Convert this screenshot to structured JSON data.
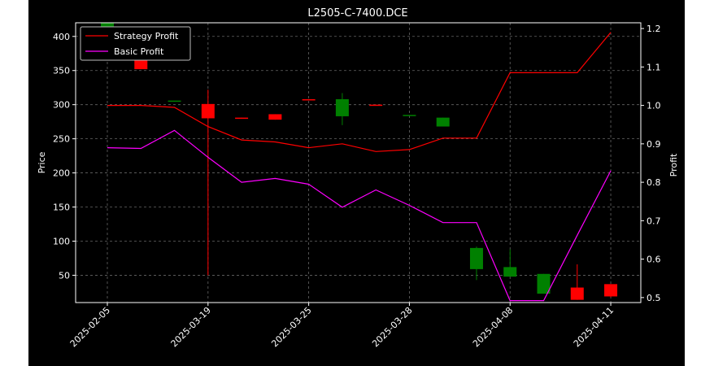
{
  "chart_data": {
    "type": "candlestick",
    "title": "L2505-C-7400.DCE",
    "ylabel": "Price",
    "y2label": "Profit",
    "ylim": [
      10,
      420
    ],
    "y2lim": [
      0.487,
      1.215
    ],
    "yticks": [
      50,
      100,
      150,
      200,
      250,
      300,
      350,
      400
    ],
    "y2ticks": [
      0.5,
      0.6,
      0.7,
      0.8,
      0.9,
      1.0,
      1.1,
      1.2
    ],
    "xticks": [
      {
        "index": 0,
        "label": "2025-02-05"
      },
      {
        "index": 3,
        "label": "2025-03-19"
      },
      {
        "index": 6,
        "label": "2025-03-25"
      },
      {
        "index": 9,
        "label": "2025-03-28"
      },
      {
        "index": 12,
        "label": "2025-04-08"
      },
      {
        "index": 15,
        "label": "2025-04-11"
      }
    ],
    "grid": true,
    "legend_position": "top-left",
    "colors": {
      "background": "#000000",
      "axes": "#ffffff",
      "grid": "#666666",
      "up": "#008000",
      "down": "#ff0000",
      "strategy": "#ff0000",
      "basic": "#ff00ff"
    },
    "candles": [
      {
        "open": 385,
        "high": 420,
        "low": 385,
        "close": 420
      },
      {
        "open": 372,
        "high": 372,
        "low": 352,
        "close": 352
      },
      {
        "open": 306,
        "high": 306,
        "low": 306,
        "close": 306
      },
      {
        "open": 301,
        "high": 322,
        "low": 50,
        "close": 280
      },
      {
        "open": 281,
        "high": 281,
        "low": 280,
        "close": 280
      },
      {
        "open": 286,
        "high": 286,
        "low": 278,
        "close": 278
      },
      {
        "open": 308,
        "high": 308,
        "low": 307,
        "close": 307
      },
      {
        "open": 283,
        "high": 317,
        "low": 270,
        "close": 308
      },
      {
        "open": 300,
        "high": 300,
        "low": 299,
        "close": 299
      },
      {
        "open": 285,
        "high": 285,
        "low": 285,
        "close": 285
      },
      {
        "open": 268,
        "high": 281,
        "low": 268,
        "close": 281
      },
      {
        "open": 59,
        "high": 92,
        "low": 43,
        "close": 90
      },
      {
        "open": 48,
        "high": 88,
        "low": 48,
        "close": 62
      },
      {
        "open": 23,
        "high": 52,
        "low": 23,
        "close": 52
      },
      {
        "open": 32,
        "high": 66,
        "low": 14,
        "close": 14
      },
      {
        "open": 37,
        "high": 37,
        "low": 18,
        "close": 19
      }
    ],
    "series": [
      {
        "name": "Strategy Profit",
        "axis": "right",
        "values": [
          1.0,
          1.0,
          0.995,
          0.945,
          0.91,
          0.905,
          0.89,
          0.9,
          0.88,
          0.885,
          0.915,
          0.915,
          1.085,
          1.085,
          1.085,
          1.19
        ]
      },
      {
        "name": "Basic Profit",
        "axis": "right",
        "values": [
          0.89,
          0.888,
          0.935,
          0.865,
          0.8,
          0.81,
          0.795,
          0.735,
          0.78,
          0.74,
          0.695,
          0.695,
          0.492,
          0.492,
          0.662,
          0.83
        ]
      }
    ]
  }
}
